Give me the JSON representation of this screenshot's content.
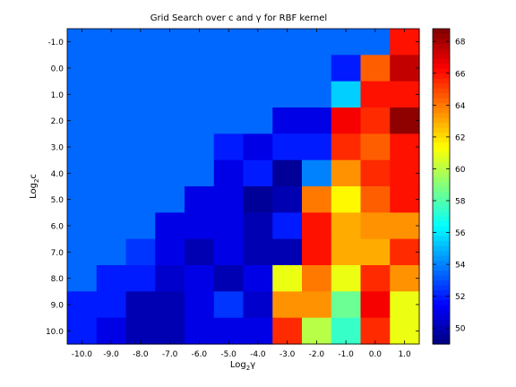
{
  "chart_data": {
    "type": "heatmap",
    "title": "Grid Search over c and γ for RBF kernel",
    "xlabel": "Log₂γ",
    "ylabel": "Log₂c",
    "xlabel_parts": {
      "base": "Log",
      "sub": "2",
      "symbol": "γ"
    },
    "ylabel_parts": {
      "base": "Log",
      "sub": "2",
      "symbol": "c"
    },
    "x": [
      -10.0,
      -9.0,
      -8.0,
      -7.0,
      -6.0,
      -5.0,
      -4.0,
      -3.0,
      -2.0,
      -1.0,
      0.0,
      1.0
    ],
    "y": [
      -1.0,
      0.0,
      1.0,
      2.0,
      3.0,
      4.0,
      5.0,
      6.0,
      7.0,
      8.0,
      9.0,
      10.0
    ],
    "x_tick_labels": [
      "-10.0",
      "-9.0",
      "-8.0",
      "-7.0",
      "-6.0",
      "-5.0",
      "-4.0",
      "-3.0",
      "-2.0",
      "-1.0",
      "0.0",
      "1.0"
    ],
    "y_tick_labels": [
      "-1.0",
      "0.0",
      "1.0",
      "2.0",
      "3.0",
      "4.0",
      "5.0",
      "6.0",
      "7.0",
      "8.0",
      "9.0",
      "10.0"
    ],
    "values": [
      [
        53.5,
        53.5,
        53.5,
        53.5,
        53.5,
        53.5,
        53.5,
        53.5,
        53.5,
        53.5,
        53.5,
        66.0
      ],
      [
        53.5,
        53.5,
        53.5,
        53.5,
        53.5,
        53.5,
        53.5,
        53.5,
        53.5,
        52.0,
        64.5,
        67.5
      ],
      [
        53.5,
        53.5,
        53.5,
        53.5,
        53.5,
        53.5,
        53.5,
        53.5,
        53.5,
        55.5,
        66.0,
        66.0
      ],
      [
        53.5,
        53.5,
        53.5,
        53.5,
        53.5,
        53.5,
        53.5,
        51.0,
        51.0,
        66.5,
        65.5,
        68.5
      ],
      [
        53.5,
        53.5,
        53.5,
        53.5,
        53.5,
        52.0,
        51.0,
        52.0,
        52.0,
        65.5,
        64.5,
        66.0
      ],
      [
        53.5,
        53.5,
        53.5,
        53.5,
        53.5,
        51.0,
        52.0,
        49.5,
        54.0,
        63.5,
        65.5,
        66.0
      ],
      [
        53.5,
        53.5,
        53.5,
        53.5,
        51.0,
        51.0,
        49.5,
        50.0,
        64.0,
        61.5,
        64.5,
        66.0
      ],
      [
        53.5,
        53.5,
        53.5,
        51.0,
        51.0,
        51.0,
        50.0,
        52.0,
        66.0,
        63.0,
        63.5,
        63.5
      ],
      [
        53.5,
        53.5,
        52.5,
        51.0,
        50.0,
        51.0,
        50.0,
        50.0,
        66.0,
        63.0,
        63.0,
        65.5
      ],
      [
        53.5,
        52.0,
        52.0,
        50.5,
        51.0,
        50.0,
        51.0,
        61.0,
        64.0,
        61.0,
        65.5,
        63.5
      ],
      [
        52.0,
        52.0,
        50.0,
        50.0,
        51.0,
        52.5,
        50.5,
        63.5,
        63.5,
        58.5,
        66.5,
        61.0
      ],
      [
        52.0,
        51.0,
        50.0,
        50.0,
        51.0,
        51.0,
        51.0,
        65.5,
        60.0,
        57.5,
        65.5,
        61.0
      ]
    ],
    "colormap": "jet",
    "color_range": [
      49.0,
      68.8
    ],
    "colorbar_ticks": [
      50,
      52,
      54,
      56,
      58,
      60,
      62,
      64,
      66,
      68
    ],
    "colorbar_tick_labels": [
      "50",
      "52",
      "54",
      "56",
      "58",
      "60",
      "62",
      "64",
      "66",
      "68"
    ]
  }
}
